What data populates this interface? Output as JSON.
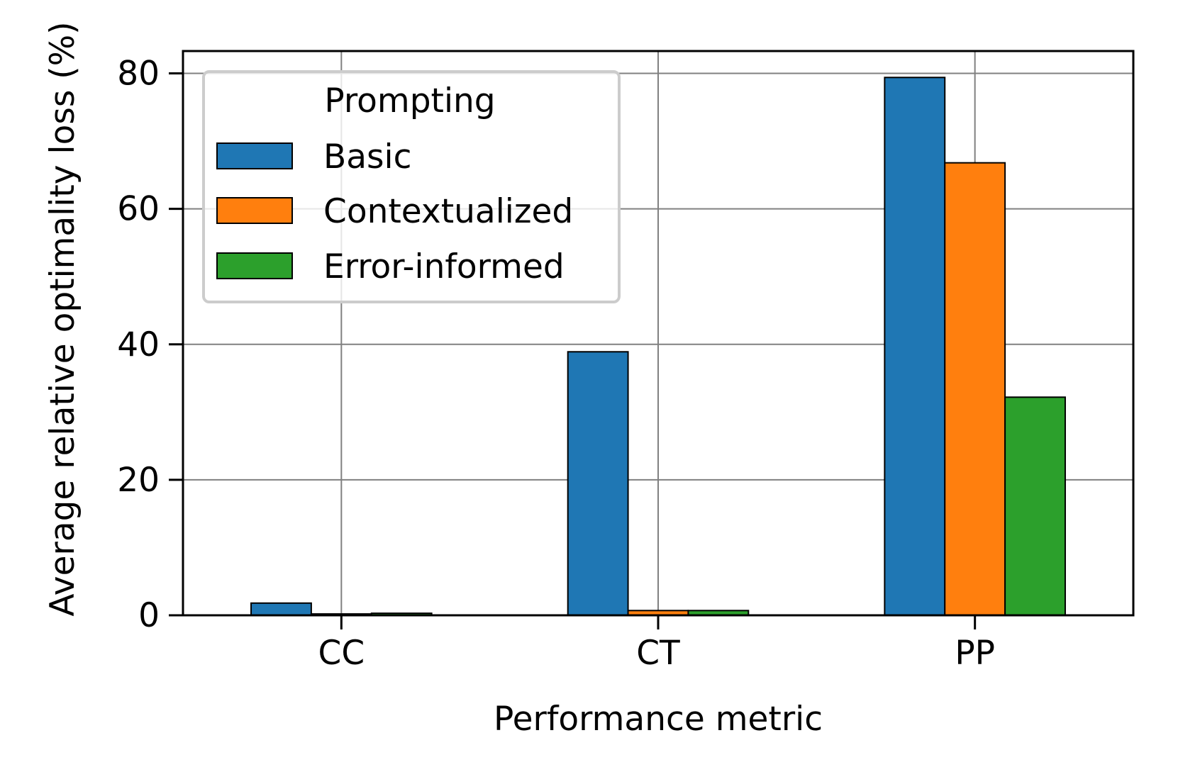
{
  "chart_data": {
    "type": "bar",
    "title": "",
    "xlabel": "Performance metric",
    "ylabel": "Average relative optimality loss (%)",
    "categories": [
      "CC",
      "CT",
      "PP"
    ],
    "ylim": [
      0,
      83.3
    ],
    "yticks": [
      0,
      20,
      40,
      60,
      80
    ],
    "grid": true,
    "legend": {
      "title": "Prompting",
      "placement": "top-left"
    },
    "series": [
      {
        "name": "Basic",
        "color": "#1f77b4",
        "values": [
          1.8,
          38.9,
          79.4
        ]
      },
      {
        "name": "Contextualized",
        "color": "#ff7f0e",
        "values": [
          0.2,
          0.7,
          66.8
        ]
      },
      {
        "name": "Error-informed",
        "color": "#2ca02c",
        "values": [
          0.3,
          0.7,
          32.2
        ]
      }
    ]
  }
}
